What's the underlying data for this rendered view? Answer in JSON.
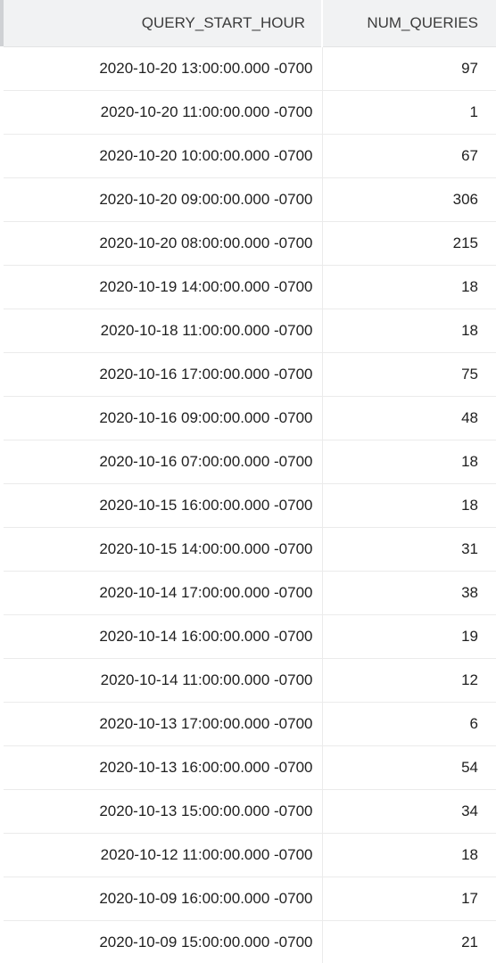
{
  "results_grid": {
    "columns": [
      "QUERY_START_HOUR",
      "NUM_QUERIES"
    ],
    "rows": [
      [
        "2020-10-20 13:00:00.000 -0700",
        "97"
      ],
      [
        "2020-10-20 11:00:00.000 -0700",
        "1"
      ],
      [
        "2020-10-20 10:00:00.000 -0700",
        "67"
      ],
      [
        "2020-10-20 09:00:00.000 -0700",
        "306"
      ],
      [
        "2020-10-20 08:00:00.000 -0700",
        "215"
      ],
      [
        "2020-10-19 14:00:00.000 -0700",
        "18"
      ],
      [
        "2020-10-18 11:00:00.000 -0700",
        "18"
      ],
      [
        "2020-10-16 17:00:00.000 -0700",
        "75"
      ],
      [
        "2020-10-16 09:00:00.000 -0700",
        "48"
      ],
      [
        "2020-10-16 07:00:00.000 -0700",
        "18"
      ],
      [
        "2020-10-15 16:00:00.000 -0700",
        "18"
      ],
      [
        "2020-10-15 14:00:00.000 -0700",
        "31"
      ],
      [
        "2020-10-14 17:00:00.000 -0700",
        "38"
      ],
      [
        "2020-10-14 16:00:00.000 -0700",
        "19"
      ],
      [
        "2020-10-14 11:00:00.000 -0700",
        "12"
      ],
      [
        "2020-10-13 17:00:00.000 -0700",
        "6"
      ],
      [
        "2020-10-13 16:00:00.000 -0700",
        "54"
      ],
      [
        "2020-10-13 15:00:00.000 -0700",
        "34"
      ],
      [
        "2020-10-12 11:00:00.000 -0700",
        "18"
      ],
      [
        "2020-10-09 16:00:00.000 -0700",
        "17"
      ],
      [
        "2020-10-09 15:00:00.000 -0700",
        "21"
      ]
    ]
  }
}
